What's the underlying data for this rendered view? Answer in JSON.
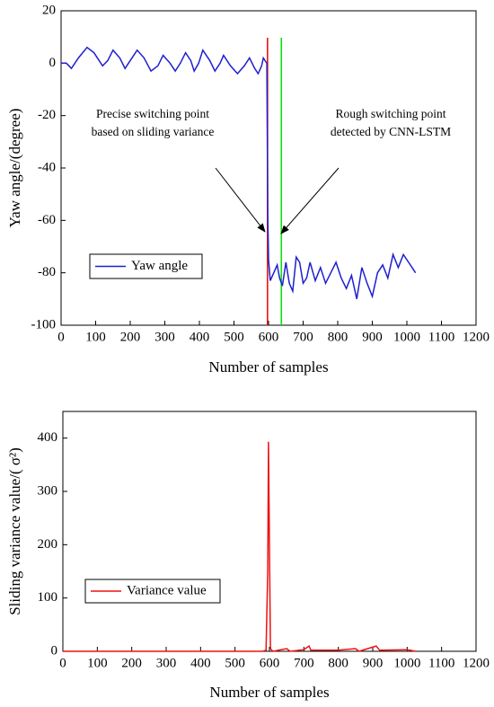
{
  "chart_data": [
    {
      "type": "line",
      "xlabel": "Number of samples",
      "ylabel": "Yaw angle/(degree)",
      "xlim": [
        0,
        1200
      ],
      "xticks": [
        0,
        100,
        200,
        300,
        400,
        500,
        600,
        700,
        800,
        900,
        1000,
        1100,
        1200
      ],
      "ylim": [
        -100,
        20
      ],
      "yticks": [
        -100,
        -80,
        -60,
        -40,
        -20,
        0,
        20
      ],
      "legend": "lower left",
      "series": [
        {
          "name": "Yaw angle",
          "color": "#1f1fd0",
          "x": [
            0,
            15,
            30,
            50,
            75,
            95,
            120,
            135,
            150,
            170,
            185,
            200,
            220,
            240,
            260,
            280,
            295,
            315,
            330,
            345,
            360,
            375,
            385,
            398,
            410,
            430,
            445,
            460,
            470,
            490,
            510,
            530,
            545,
            560,
            570,
            580,
            585,
            590,
            595,
            598,
            600,
            605,
            615,
            625,
            632,
            640,
            650,
            660,
            670,
            680,
            690,
            700,
            710,
            720,
            735,
            750,
            765,
            780,
            795,
            810,
            825,
            840,
            855,
            870,
            885,
            900,
            915,
            930,
            945,
            960,
            975,
            990,
            1005,
            1015,
            1025
          ],
          "values": [
            0,
            0,
            -2,
            2,
            6,
            4,
            -1,
            1,
            5,
            2,
            -2,
            1,
            5,
            2,
            -3,
            -1,
            3,
            0,
            -3,
            0,
            4,
            1,
            -3,
            0,
            5,
            1,
            -3,
            0,
            3,
            -1,
            -4,
            -1,
            2,
            -2,
            -4,
            -1,
            2,
            1,
            0,
            -60,
            -75,
            -83,
            -80,
            -77,
            -82,
            -85,
            -76,
            -84,
            -87,
            -74,
            -76,
            -84,
            -82,
            -76,
            -83,
            -78,
            -84,
            -80,
            -76,
            -82,
            -86,
            -81,
            -90,
            -78,
            -84,
            -89,
            -80,
            -77,
            -82,
            -73,
            -78,
            -73,
            -76,
            -78,
            -80
          ]
        }
      ],
      "vlines": [
        {
          "x": 597,
          "color": "#ee1111"
        },
        {
          "x": 637,
          "color": "#11dd11"
        }
      ],
      "annotations": [
        "Precise switching point",
        "based on sliding variance",
        "Rough switching point",
        "detected by CNN-LSTM"
      ]
    },
    {
      "type": "line",
      "xlabel": "Number of samples",
      "ylabel": "Sliding variance value/( σ²)",
      "xlim": [
        0,
        1200
      ],
      "xticks": [
        0,
        100,
        200,
        300,
        400,
        500,
        600,
        700,
        800,
        900,
        1000,
        1100,
        1200
      ],
      "ylim": [
        0,
        450
      ],
      "yticks": [
        0,
        100,
        200,
        300,
        400
      ],
      "legend": "lower left",
      "series": [
        {
          "name": "Variance value",
          "color": "#ee1111",
          "x": [
            0,
            580,
            590,
            595,
            597,
            600,
            603,
            610,
            650,
            660,
            700,
            715,
            720,
            800,
            850,
            860,
            910,
            920,
            1000,
            1025
          ],
          "values": [
            0,
            0,
            2,
            150,
            393,
            200,
            5,
            0,
            5,
            0,
            3,
            10,
            2,
            2,
            5,
            0,
            10,
            2,
            3,
            0
          ]
        }
      ]
    }
  ]
}
